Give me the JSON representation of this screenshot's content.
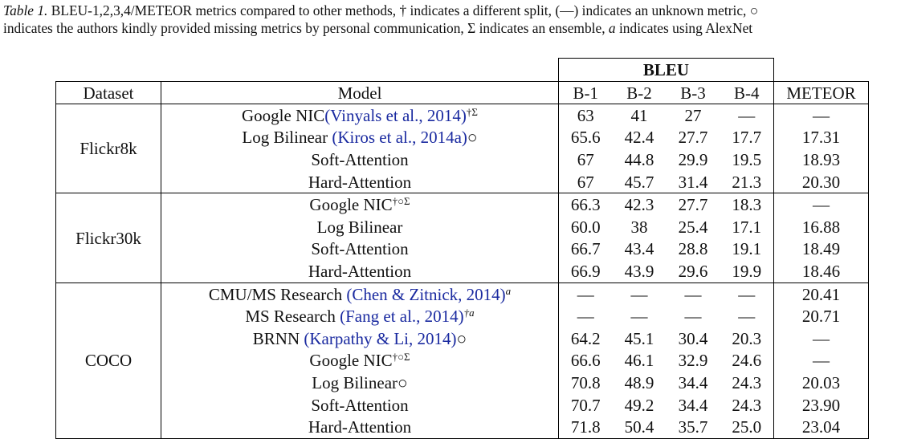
{
  "caption": {
    "label": "Table 1.",
    "line1": "BLEU-1,2,3,4/METEOR metrics compared to other methods, † indicates a different split, (—) indicates an unknown metric, ○",
    "line2_pre": "indicates the authors kindly provided missing metrics by personal communication, Σ indicates an ensemble,",
    "line2_alpha": "a",
    "line2_post": "indicates using AlexNet"
  },
  "header": {
    "group": "BLEU",
    "dataset": "Dataset",
    "model": "Model",
    "b1": "B-1",
    "b2": "B-2",
    "b3": "B-3",
    "b4": "B-4",
    "meteor": "METEOR"
  },
  "datasets": {
    "flickr8k": "Flickr8k",
    "flickr30k": "Flickr30k",
    "coco": "COCO"
  },
  "rows": [
    {
      "model": "Google NIC",
      "cite": "(Vinyals et al., 2014)",
      "post": "",
      "sup": "†Σ",
      "v": [
        "63",
        "41",
        "27",
        "—",
        "—"
      ]
    },
    {
      "model": "Log Bilinear ",
      "cite": "(Kiros et al., 2014a)",
      "post": "○",
      "sup": "",
      "v": [
        "65.6",
        "42.4",
        "27.7",
        "17.7",
        "17.31"
      ]
    },
    {
      "model": "Soft-Attention",
      "cite": "",
      "post": "",
      "sup": "",
      "v": [
        "67",
        "44.8",
        "29.9",
        "19.5",
        "18.93"
      ]
    },
    {
      "model": "Hard-Attention",
      "cite": "",
      "post": "",
      "sup": "",
      "v": [
        "67",
        "45.7",
        "31.4",
        "21.3",
        "20.30"
      ]
    },
    {
      "model": "Google NIC",
      "cite": "",
      "post": "",
      "sup": "†○Σ",
      "v": [
        "66.3",
        "42.3",
        "27.7",
        "18.3",
        "—"
      ]
    },
    {
      "model": "Log Bilinear",
      "cite": "",
      "post": "",
      "sup": "",
      "v": [
        "60.0",
        "38",
        "25.4",
        "17.1",
        "16.88"
      ]
    },
    {
      "model": "Soft-Attention",
      "cite": "",
      "post": "",
      "sup": "",
      "v": [
        "66.7",
        "43.4",
        "28.8",
        "19.1",
        "18.49"
      ]
    },
    {
      "model": "Hard-Attention",
      "cite": "",
      "post": "",
      "sup": "",
      "v": [
        "66.9",
        "43.9",
        "29.6",
        "19.9",
        "18.46"
      ]
    },
    {
      "model": "CMU/MS Research ",
      "cite": "(Chen & Zitnick, 2014)",
      "post": "",
      "sup": "a",
      "v": [
        "—",
        "—",
        "—",
        "—",
        "20.41"
      ]
    },
    {
      "model": "MS Research ",
      "cite": "(Fang et al., 2014)",
      "post": "",
      "sup": "†a",
      "v": [
        "—",
        "—",
        "—",
        "—",
        "20.71"
      ]
    },
    {
      "model": "BRNN ",
      "cite": "(Karpathy & Li, 2014)",
      "post": "○",
      "sup": "",
      "v": [
        "64.2",
        "45.1",
        "30.4",
        "20.3",
        "—"
      ]
    },
    {
      "model": "Google NIC",
      "cite": "",
      "post": "",
      "sup": "†○Σ",
      "v": [
        "66.6",
        "46.1",
        "32.9",
        "24.6",
        "—"
      ]
    },
    {
      "model": "Log Bilinear",
      "cite": "",
      "post": "○",
      "sup": "",
      "v": [
        "70.8",
        "48.9",
        "34.4",
        "24.3",
        "20.03"
      ]
    },
    {
      "model": "Soft-Attention",
      "cite": "",
      "post": "",
      "sup": "",
      "v": [
        "70.7",
        "49.2",
        "34.4",
        "24.3",
        "23.90"
      ]
    },
    {
      "model": "Hard-Attention",
      "cite": "",
      "post": "",
      "sup": "",
      "v": [
        "71.8",
        "50.4",
        "35.7",
        "25.0",
        "23.04"
      ]
    }
  ]
}
